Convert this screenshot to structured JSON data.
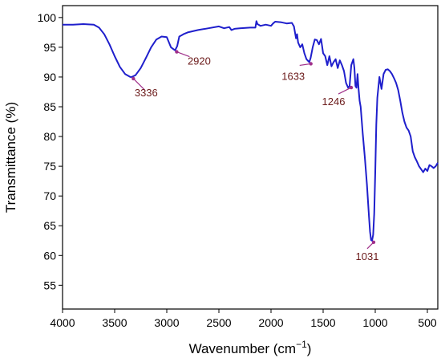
{
  "chart_data": {
    "type": "line",
    "title": "",
    "xlabel": "Wavenumber (cm",
    "xlabel_sup": "−1",
    "xlabel_tail": ")",
    "ylabel": "Transmittance (%)",
    "xlim": [
      4000,
      400
    ],
    "ylim": [
      51,
      102
    ],
    "x_reversed": true,
    "grid": false,
    "x_ticks": [
      4000,
      3500,
      3000,
      2500,
      2000,
      1500,
      1000,
      500
    ],
    "y_ticks": [
      55,
      60,
      65,
      70,
      75,
      80,
      85,
      90,
      95,
      100
    ],
    "colors": {
      "line": "#1f1fcc",
      "annotation": "#6b1a1a",
      "arrow": "#a0308a"
    },
    "series": [
      {
        "x": [
          4000,
          3900,
          3800,
          3700,
          3650,
          3600,
          3550,
          3500,
          3450,
          3400,
          3350,
          3336,
          3300,
          3250,
          3200,
          3150,
          3100,
          3050,
          3000,
          2960,
          2930,
          2920,
          2900,
          2880,
          2860,
          2840,
          2800,
          2700,
          2600,
          2500,
          2450,
          2400,
          2380,
          2350,
          2300,
          2200,
          2150,
          2140,
          2130,
          2100,
          2050,
          2000,
          1980,
          1960,
          1900,
          1850,
          1800,
          1780,
          1760,
          1750,
          1740,
          1720,
          1700,
          1680,
          1660,
          1633,
          1620,
          1600,
          1580,
          1560,
          1540,
          1520,
          1500,
          1480,
          1460,
          1440,
          1420,
          1400,
          1380,
          1360,
          1340,
          1320,
          1300,
          1280,
          1260,
          1246,
          1230,
          1210,
          1200,
          1190,
          1180,
          1170,
          1160,
          1150,
          1140,
          1120,
          1100,
          1080,
          1060,
          1050,
          1040,
          1031,
          1020,
          1010,
          1000,
          990,
          980,
          960,
          940,
          920,
          900,
          880,
          860,
          840,
          820,
          800,
          780,
          760,
          740,
          720,
          700,
          680,
          660,
          640,
          620,
          600,
          580,
          560,
          540,
          520,
          500,
          480,
          460,
          440,
          420,
          400
        ],
        "y": [
          98.8,
          98.8,
          98.9,
          98.8,
          98.3,
          97.2,
          95.5,
          93.5,
          91.7,
          90.5,
          90.0,
          90.0,
          90.3,
          91.5,
          93.2,
          95.0,
          96.3,
          96.8,
          96.7,
          95.0,
          94.6,
          94.5,
          95.2,
          96.8,
          97.0,
          97.2,
          97.5,
          97.9,
          98.2,
          98.5,
          98.2,
          98.4,
          97.9,
          98.1,
          98.2,
          98.3,
          98.3,
          99.4,
          98.9,
          98.6,
          98.8,
          98.6,
          99.0,
          99.3,
          99.2,
          99.0,
          99.1,
          98.5,
          96.5,
          97.2,
          95.8,
          95.0,
          95.5,
          94.0,
          93.0,
          92.5,
          93.2,
          95.0,
          96.3,
          96.2,
          95.5,
          96.4,
          94.0,
          93.5,
          92.0,
          93.5,
          91.8,
          92.5,
          93.0,
          91.5,
          92.8,
          92.0,
          91.0,
          89.0,
          88.2,
          88.5,
          92.0,
          93.0,
          91.5,
          88.5,
          88.2,
          90.5,
          88.0,
          86.0,
          85.0,
          80.5,
          76.5,
          72.0,
          66.5,
          64.0,
          62.6,
          62.5,
          63.5,
          67.0,
          74.0,
          82.0,
          86.5,
          90.0,
          88.0,
          90.5,
          91.2,
          91.3,
          91.0,
          90.5,
          89.8,
          89.0,
          87.8,
          86.0,
          84.0,
          82.5,
          81.5,
          81.0,
          80.0,
          77.5,
          76.5,
          75.8,
          75.0,
          74.5,
          74.0,
          74.6,
          74.2,
          75.2,
          75.0,
          74.7,
          75.0,
          75.6
        ]
      }
    ],
    "annotations": [
      {
        "label": "3336",
        "x": 3336,
        "y": 90.0
      },
      {
        "label": "2920",
        "x": 2920,
        "y": 94.5
      },
      {
        "label": "1633",
        "x": 1633,
        "y": 92.5
      },
      {
        "label": "1246",
        "x": 1246,
        "y": 88.5
      },
      {
        "label": "1031",
        "x": 1031,
        "y": 62.5
      }
    ]
  }
}
